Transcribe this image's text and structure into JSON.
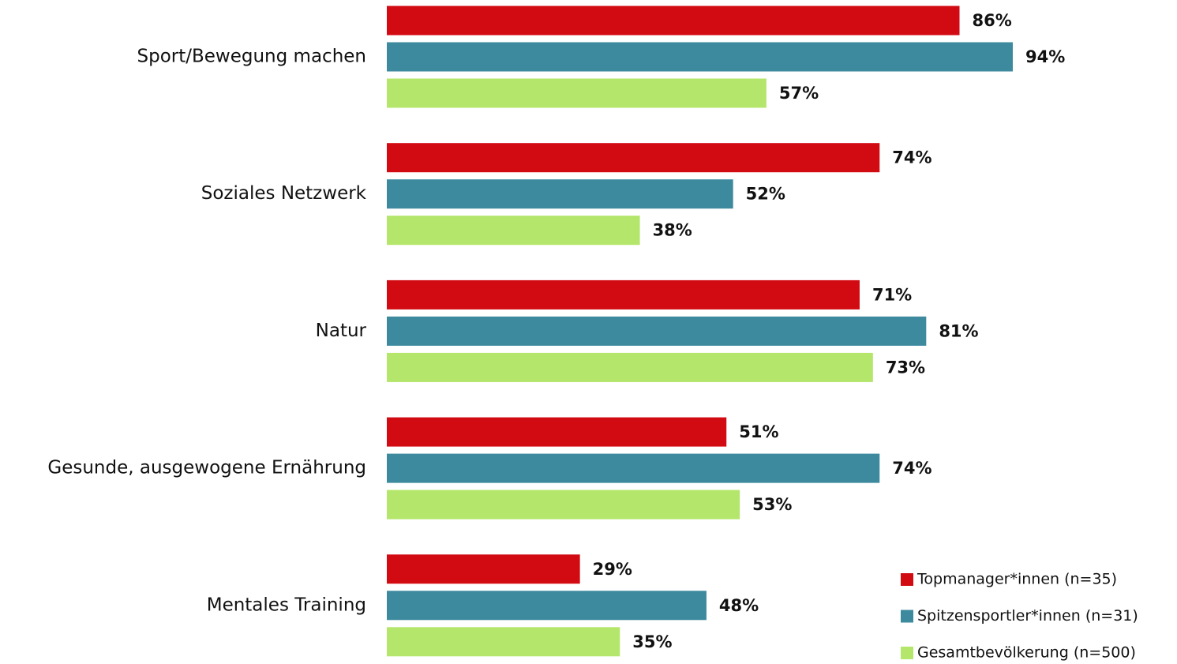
{
  "chart_data": {
    "type": "barh",
    "categories": [
      "Sport/Bewegung machen",
      "Soziales Netzwerk",
      "Natur",
      "Gesunde, ausgewogene Ernährung",
      "Mentales Training"
    ],
    "series": [
      {
        "name": "Topmanager*innen (n=35)",
        "color": "#d20a11",
        "values": [
          86,
          74,
          71,
          51,
          29
        ],
        "value_labels": [
          "86%",
          "74%",
          "71%",
          "51%",
          "29%"
        ]
      },
      {
        "name": "Spitzensportler*innen (n=31)",
        "color": "#3d8a9e",
        "values": [
          94,
          52,
          81,
          74,
          48
        ],
        "value_labels": [
          "94%",
          "52%",
          "81%",
          "74%",
          "48%"
        ]
      },
      {
        "name": "Gesamtbevölkerung (n=500)",
        "color": "#b3e66a",
        "values": [
          57,
          38,
          73,
          53,
          35
        ],
        "value_labels": [
          "57%",
          "38%",
          "73%",
          "53%",
          "35%"
        ]
      }
    ],
    "legend": "bottom-right"
  }
}
